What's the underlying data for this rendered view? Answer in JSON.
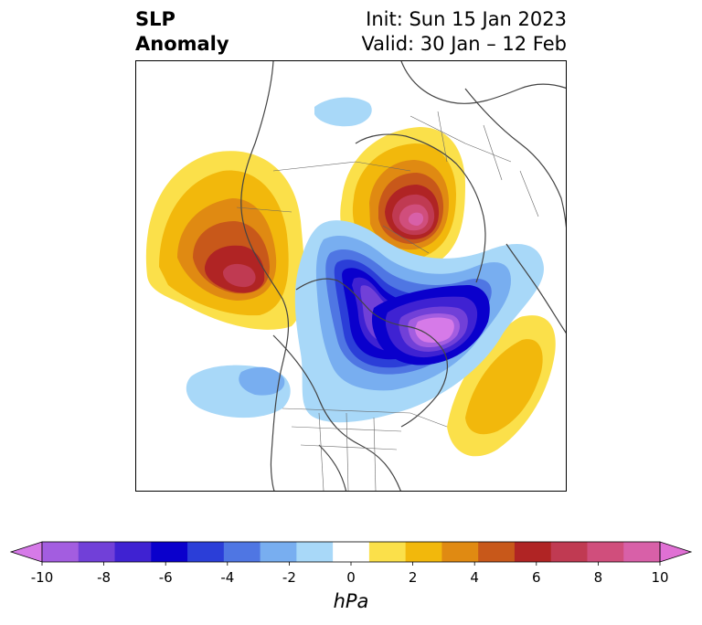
{
  "title": {
    "left_line1": "SLP",
    "left_line2": "Anomaly",
    "right_line1": "Init: Sun 15 Jan 2023",
    "right_line2": "Valid: 30 Jan – 12 Feb"
  },
  "colorbar": {
    "unit": "hPa",
    "ticks": [
      "-10",
      "-8",
      "-6",
      "-4",
      "-2",
      "0",
      "2",
      "4",
      "6",
      "8",
      "10"
    ],
    "colors": [
      "#d67ae8",
      "#a35de0",
      "#7140d8",
      "#3f22d2",
      "#0a00cc",
      "#2b3ed8",
      "#4f76e3",
      "#78aef0",
      "#a8d8f8",
      "#ffffff",
      "#fbe04a",
      "#f2b80c",
      "#e08a12",
      "#c8581a",
      "#b02424",
      "#c03a52",
      "#d04e7c",
      "#d860a8",
      "#e070d4"
    ]
  },
  "map": {
    "description_colors": {
      "negative_strong": "#d67ae8",
      "negative_mid": "#0a00cc",
      "negative_weak": "#a8d8f8",
      "positive_weak": "#fbe04a",
      "positive_mid": "#e08a12",
      "positive_strong": "#c03a52"
    }
  }
}
